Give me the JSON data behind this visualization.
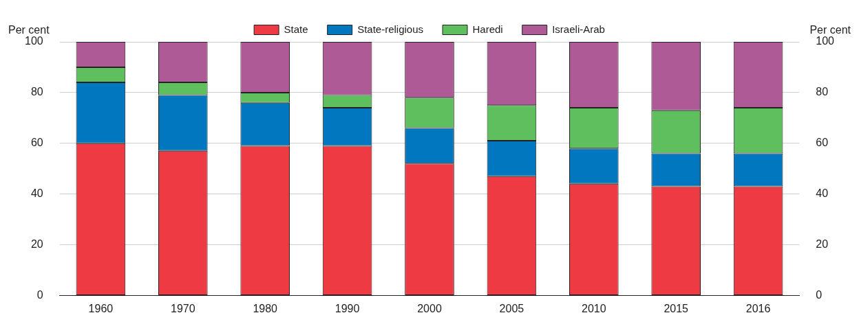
{
  "chart_data": {
    "type": "bar",
    "stacked": true,
    "categories": [
      "1960",
      "1970",
      "1980",
      "1990",
      "2000",
      "2005",
      "2010",
      "2015",
      "2016"
    ],
    "series": [
      {
        "name": "State",
        "color": "#ee3a43",
        "values": [
          60,
          57,
          59,
          59,
          52,
          47,
          44,
          43,
          43
        ]
      },
      {
        "name": "State-religious",
        "color": "#0077bf",
        "values": [
          24,
          22,
          17,
          15,
          14,
          14,
          14,
          13,
          13
        ]
      },
      {
        "name": "Haredi",
        "color": "#5fbf5f",
        "values": [
          6,
          5,
          4,
          5,
          12,
          14,
          16,
          17,
          18
        ]
      },
      {
        "name": "Israeli-Arab",
        "color": "#ae5a96",
        "values": [
          10,
          16,
          20,
          21,
          22,
          25,
          26,
          27,
          26
        ]
      }
    ],
    "ylabel": "Per cent",
    "y2label": "Per cent",
    "ylim": [
      0,
      100
    ],
    "yticks": [
      0,
      20,
      40,
      60,
      80,
      100
    ],
    "y2lim": [
      0,
      100
    ],
    "y2ticks": [
      0,
      20,
      40,
      60,
      80,
      100
    ],
    "grid": "y",
    "legend": "top"
  }
}
